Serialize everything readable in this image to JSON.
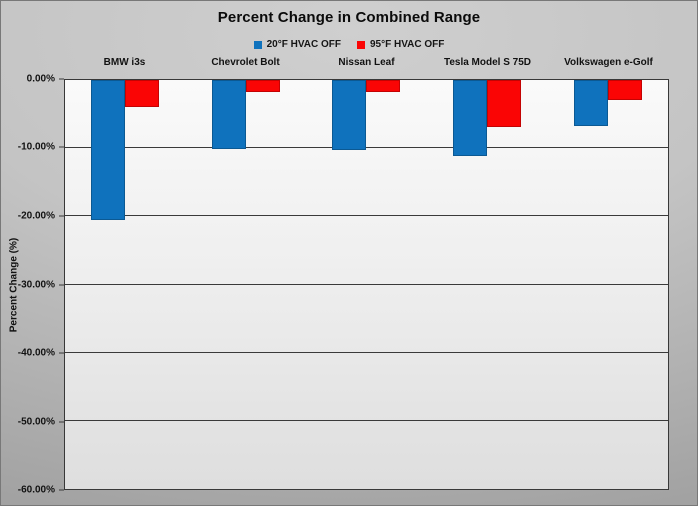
{
  "chart_data": {
    "type": "bar",
    "title": "Percent Change in Combined Range",
    "categories": [
      "BMW i3s",
      "Chevrolet Bolt",
      "Nissan Leaf",
      "Tesla Model S 75D",
      "Volkswagen e-Golf"
    ],
    "series": [
      {
        "name": "20°F HVAC OFF",
        "color": "#0f72bd",
        "values": [
          -20.5,
          -10.1,
          -10.3,
          -11.1,
          -6.7
        ]
      },
      {
        "name": "95°F HVAC OFF",
        "color": "#fa0505",
        "values": [
          -4.0,
          -1.7,
          -1.8,
          -6.9,
          -2.9
        ]
      }
    ],
    "xlabel": "",
    "ylabel": "Percent Change (%)",
    "ylim": [
      -60,
      0
    ],
    "yticks": [
      "0.00%",
      "-10.00%",
      "-20.00%",
      "-30.00%",
      "-40.00%",
      "-50.00%",
      "-60.00%"
    ],
    "grid": true,
    "legend_position": "top-center",
    "plot_background": "#f2f2f2",
    "chart_background": "#bdbdbd",
    "gridline_color": "#3a3a3a"
  }
}
